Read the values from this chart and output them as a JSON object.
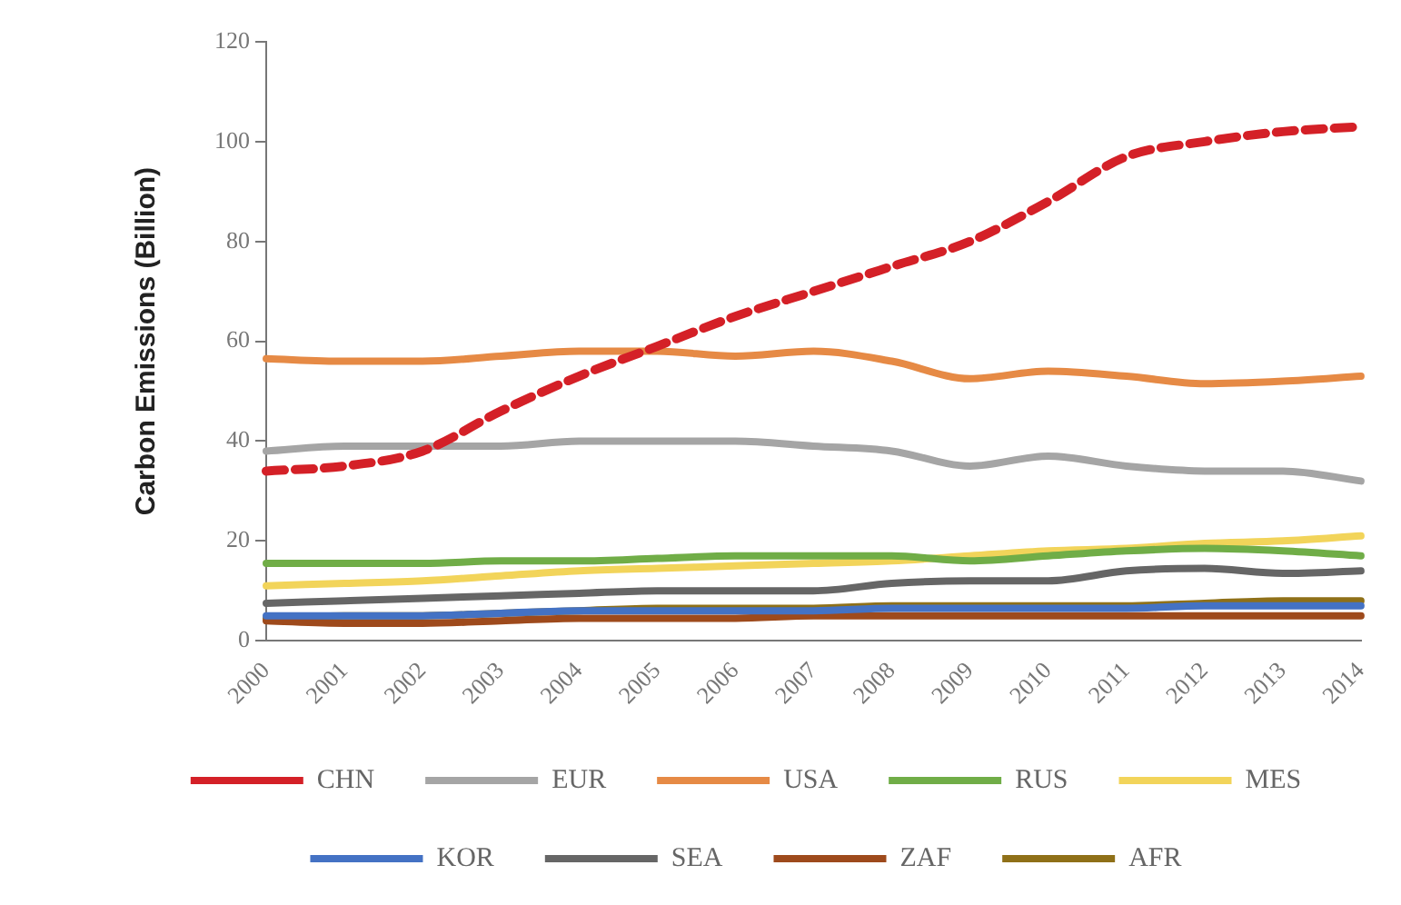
{
  "chart_data": {
    "type": "line",
    "ylabel": "Carbon Emissions (Billion)",
    "categories": [
      "2000",
      "2001",
      "2002",
      "2003",
      "2004",
      "2005",
      "2006",
      "2007",
      "2008",
      "2009",
      "2010",
      "2011",
      "2012",
      "2013",
      "2014"
    ],
    "ylim": [
      0,
      120
    ],
    "yticks": [
      0,
      20,
      40,
      60,
      80,
      100,
      120
    ],
    "grid": false,
    "legend": "bottom",
    "marker": "none",
    "series": [
      {
        "name": "CHN",
        "color": "#d42027",
        "line_style": "dashed",
        "values": [
          34,
          35,
          38,
          46,
          53,
          59,
          65,
          70,
          75,
          80,
          88,
          97,
          100,
          102,
          103
        ]
      },
      {
        "name": "EUR",
        "color": "#a5a5a5",
        "values": [
          38,
          39,
          39,
          39,
          40,
          40,
          40,
          39,
          38,
          35,
          37,
          35,
          34,
          34,
          32
        ]
      },
      {
        "name": "USA",
        "color": "#e68a45",
        "values": [
          56.5,
          56,
          56,
          57,
          58,
          58,
          57,
          58,
          56,
          52.5,
          54,
          53,
          51.5,
          52,
          53
        ]
      },
      {
        "name": "RUS",
        "color": "#70ad47",
        "values": [
          15.5,
          15.5,
          15.5,
          16,
          16,
          16.5,
          17,
          17,
          17,
          16,
          17,
          18,
          18.5,
          18,
          17
        ]
      },
      {
        "name": "MES",
        "color": "#f2d45a",
        "values": [
          11,
          11.5,
          12,
          13,
          14,
          14.5,
          15,
          15.5,
          16,
          17,
          18,
          18.5,
          19.5,
          20,
          21
        ]
      },
      {
        "name": "KOR",
        "color": "#4472c4",
        "values": [
          5,
          5,
          5,
          5.5,
          6,
          6,
          6,
          6,
          6.5,
          6.5,
          6.5,
          6.5,
          7,
          7,
          7
        ]
      },
      {
        "name": "SEA",
        "color": "#666666",
        "values": [
          7.5,
          8,
          8.5,
          9,
          9.5,
          10,
          10,
          10,
          11.5,
          12,
          12,
          14,
          14.5,
          13.5,
          14
        ]
      },
      {
        "name": "ZAF",
        "color": "#9e4a1c",
        "values": [
          4,
          3.5,
          3.5,
          4,
          4.5,
          4.5,
          4.5,
          5,
          5,
          5,
          5,
          5,
          5,
          5,
          5
        ]
      },
      {
        "name": "AFR",
        "color": "#8f7018",
        "values": [
          4.5,
          5,
          5,
          5.5,
          6,
          6.5,
          6.5,
          6.5,
          7,
          7,
          7,
          7,
          7.5,
          8,
          8
        ]
      }
    ]
  }
}
